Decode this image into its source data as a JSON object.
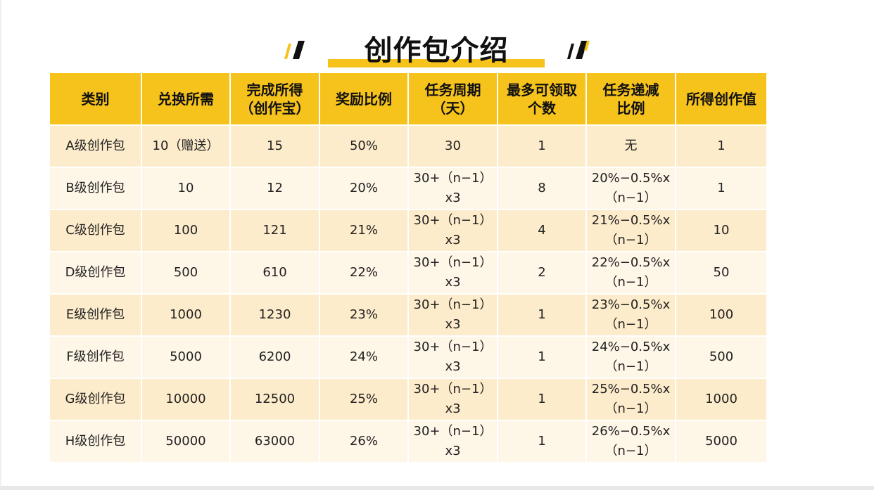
{
  "title": "创作包介绍",
  "colors": {
    "accent": "#f6c21c",
    "row_a": "#fdeccb",
    "row_b": "#fef6e7",
    "text": "#111111"
  },
  "table": {
    "headers": [
      [
        "类别"
      ],
      [
        "兑换所需"
      ],
      [
        "完成所得",
        "（创作宝）"
      ],
      [
        "奖励比例"
      ],
      [
        "任务周期",
        "（天）"
      ],
      [
        "最多可领取",
        "个数"
      ],
      [
        "任务递减",
        "比例"
      ],
      [
        "所得创作值"
      ]
    ],
    "rows": [
      {
        "cells": [
          [
            "A级创作包"
          ],
          [
            "10（赠送）"
          ],
          [
            "15"
          ],
          [
            "50%"
          ],
          [
            "30"
          ],
          [
            "1"
          ],
          [
            "无"
          ],
          [
            "1"
          ]
        ]
      },
      {
        "cells": [
          [
            "B级创作包"
          ],
          [
            "10"
          ],
          [
            "12"
          ],
          [
            "20%"
          ],
          [
            "30+（n−1）",
            "x3"
          ],
          [
            "8"
          ],
          [
            "20%−0.5%x",
            "（n−1）"
          ],
          [
            "1"
          ]
        ]
      },
      {
        "cells": [
          [
            "C级创作包"
          ],
          [
            "100"
          ],
          [
            "121"
          ],
          [
            "21%"
          ],
          [
            "30+（n−1）",
            "x3"
          ],
          [
            "4"
          ],
          [
            "21%−0.5%x",
            "（n−1）"
          ],
          [
            "10"
          ]
        ]
      },
      {
        "cells": [
          [
            "D级创作包"
          ],
          [
            "500"
          ],
          [
            "610"
          ],
          [
            "22%"
          ],
          [
            "30+（n−1）",
            "x3"
          ],
          [
            "2"
          ],
          [
            "22%−0.5%x",
            "（n−1）"
          ],
          [
            "50"
          ]
        ]
      },
      {
        "cells": [
          [
            "E级创作包"
          ],
          [
            "1000"
          ],
          [
            "1230"
          ],
          [
            "23%"
          ],
          [
            "30+（n−1）",
            "x3"
          ],
          [
            "1"
          ],
          [
            "23%−0.5%x",
            "（n−1）"
          ],
          [
            "100"
          ]
        ]
      },
      {
        "cells": [
          [
            "F级创作包"
          ],
          [
            "5000"
          ],
          [
            "6200"
          ],
          [
            "24%"
          ],
          [
            "30+（n−1）",
            "x3"
          ],
          [
            "1"
          ],
          [
            "24%−0.5%x",
            "（n−1）"
          ],
          [
            "500"
          ]
        ]
      },
      {
        "cells": [
          [
            "G级创作包"
          ],
          [
            "10000"
          ],
          [
            "12500"
          ],
          [
            "25%"
          ],
          [
            "30+（n−1）",
            "x3"
          ],
          [
            "1"
          ],
          [
            "25%−0.5%x",
            "（n−1）"
          ],
          [
            "1000"
          ]
        ]
      },
      {
        "cells": [
          [
            "H级创作包"
          ],
          [
            "50000"
          ],
          [
            "63000"
          ],
          [
            "26%"
          ],
          [
            "30+（n−1）",
            "x3"
          ],
          [
            "1"
          ],
          [
            "26%−0.5%x",
            "（n−1）"
          ],
          [
            "5000"
          ]
        ]
      }
    ]
  }
}
